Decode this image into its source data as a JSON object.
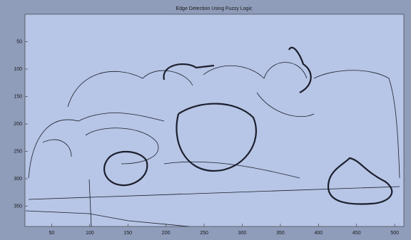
{
  "chart_data": {
    "type": "image",
    "title": "Edge Detection Using Fuzzy Logic",
    "xlim": [
      15,
      512
    ],
    "ylim": [
      387,
      0
    ],
    "xticks": [
      50,
      100,
      150,
      200,
      250,
      300,
      350,
      400,
      450,
      500
    ],
    "yticks": [
      50,
      100,
      150,
      200,
      250,
      300,
      350
    ]
  }
}
